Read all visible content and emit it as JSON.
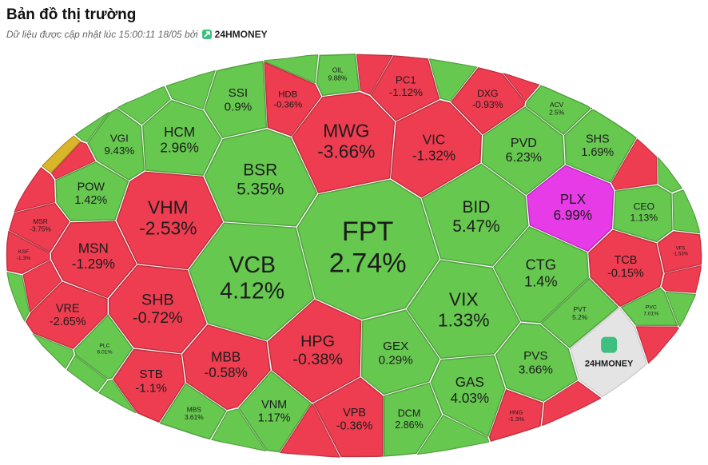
{
  "chart_data": {
    "type": "treemap",
    "title": "Bản đồ thị trường",
    "subtitle": "Dữ liệu được cập nhật lúc 15:00:11 18/05 bởi",
    "brand": "24HMONEY",
    "watermark": "24HMONEY",
    "categories": [
      "FPT",
      "VCB",
      "MWG",
      "BSR",
      "BID",
      "VIX",
      "VHM",
      "MSN",
      "SHB",
      "HPG",
      "GEX",
      "CTG",
      "PLX",
      "VIC",
      "PVD",
      "SHS",
      "CEO",
      "TCB",
      "HCM",
      "SSI",
      "VGI",
      "POW",
      "VRE",
      "STB",
      "MBB",
      "GAS",
      "PVS",
      "VPB",
      "VNM",
      "DCM",
      "HDB",
      "PC1",
      "DXG",
      "OIL",
      "ACV",
      "MSR",
      "KSF",
      "VFS",
      "PVC",
      "PVT",
      "MBS",
      "PLC",
      "HNG"
    ],
    "values": [
      2.74,
      4.12,
      -3.66,
      5.35,
      5.47,
      1.33,
      -2.53,
      -1.29,
      -0.72,
      -0.38,
      0.29,
      1.4,
      6.99,
      -1.32,
      6.23,
      1.69,
      1.13,
      -0.15,
      2.96,
      0.9,
      9.43,
      1.42,
      -2.65,
      -1.1,
      -0.58,
      4.03,
      3.66,
      -0.36,
      1.17,
      2.86,
      -0.36,
      -1.12,
      -0.93,
      9.88,
      2.5,
      -3.75,
      -1.3,
      -1.53,
      7.01,
      5.2,
      3.61,
      6.01,
      -1.3
    ],
    "value_labels": [
      "2.74%",
      "4.12%",
      "-3.66%",
      "5.35%",
      "5.47%",
      "1.33%",
      "-2.53%",
      "-1.29%",
      "-0.72%",
      "-0.38%",
      "0.29%",
      "1.4%",
      "6.99%",
      "-1.32%",
      "6.23%",
      "1.69%",
      "1.13%",
      "-0.15%",
      "2.96%",
      "0.9%",
      "9.43%",
      "1.42%",
      "-2.65%",
      "-1.1%",
      "-0.58%",
      "4.03%",
      "3.66%",
      "-0.36%",
      "1.17%",
      "2.86%",
      "-0.36%",
      "-1.12%",
      "-0.93%",
      "9.88%",
      "2.5%",
      "-3.75%",
      "-1.3%",
      "-1.53%",
      "7.01%",
      "5.2%",
      "3.61%",
      "6.01%",
      "-1.3%"
    ],
    "colors": {
      "up": "#66c84f",
      "down": "#ee3d50",
      "ceiling": "#e83be8"
    },
    "ceiling": [
      "PLX"
    ]
  }
}
